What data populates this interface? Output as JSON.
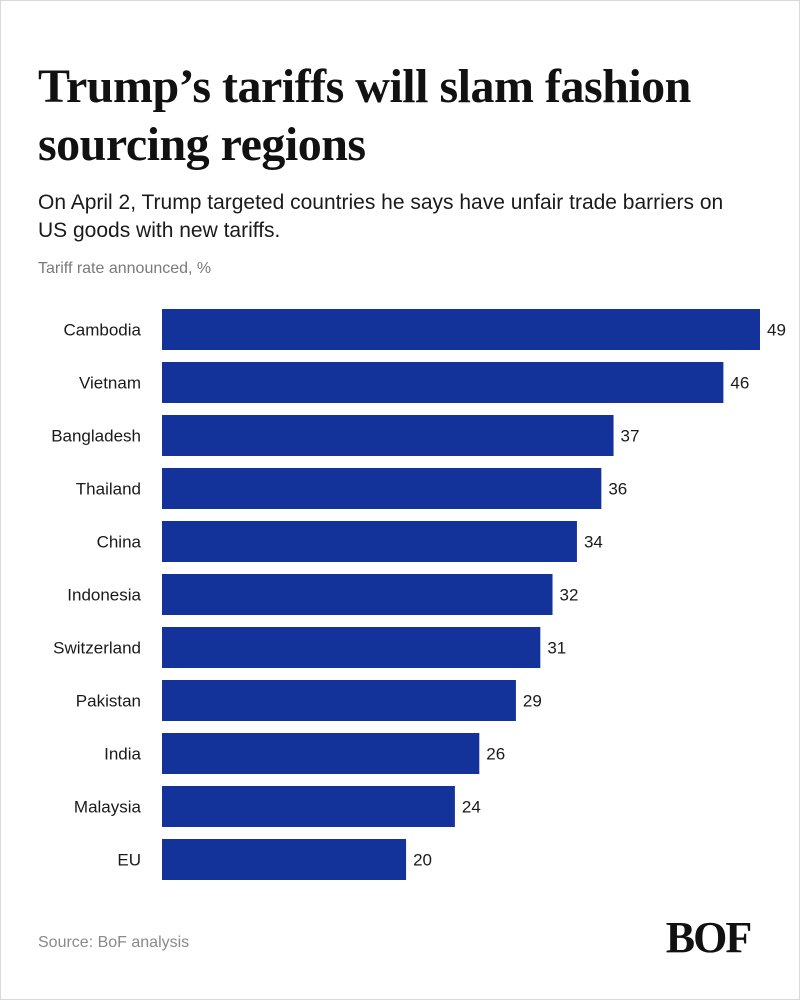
{
  "header": {
    "title": "Trump’s tariffs will slam fashion sourcing regions",
    "subtitle": "On April 2, Trump targeted countries he says have unfair trade barriers on US goods with new tariffs.",
    "axis_note": "Tariff rate announced, %"
  },
  "footer": {
    "source": "Source: BoF analysis",
    "logo_text": "BOF"
  },
  "colors": {
    "bar": "#13329A"
  },
  "chart_data": {
    "type": "bar",
    "orientation": "horizontal",
    "title": "Trump’s tariffs will slam fashion sourcing regions",
    "xlabel": "Tariff rate announced, %",
    "ylabel": "",
    "categories": [
      "Cambodia",
      "Vietnam",
      "Bangladesh",
      "Thailand",
      "China",
      "Indonesia",
      "Switzerland",
      "Pakistan",
      "India",
      "Malaysia",
      "EU"
    ],
    "values": [
      49,
      46,
      37,
      36,
      34,
      32,
      31,
      29,
      26,
      24,
      20
    ],
    "xlim": [
      0,
      49
    ],
    "grid": false,
    "legend": "none"
  }
}
